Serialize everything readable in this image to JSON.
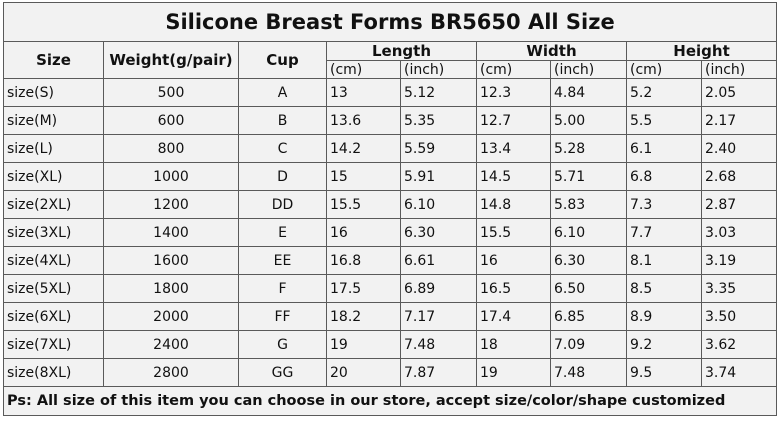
{
  "title": "Silicone Breast Forms BR5650 All Size",
  "header": {
    "size": "Size",
    "weight": "Weight(g/pair)",
    "cup": "Cup",
    "groups": [
      "Length",
      "Width",
      "Height"
    ],
    "units": [
      "(cm)",
      "(inch)",
      "(cm)",
      "(inch)",
      "(cm)",
      "(inch)"
    ]
  },
  "rows": [
    [
      "size(S)",
      "500",
      "A",
      "13",
      "5.12",
      "12.3",
      "4.84",
      "5.2",
      "2.05"
    ],
    [
      "size(M)",
      "600",
      "B",
      "13.6",
      "5.35",
      "12.7",
      "5.00",
      "5.5",
      "2.17"
    ],
    [
      "size(L)",
      "800",
      "C",
      "14.2",
      "5.59",
      "13.4",
      "5.28",
      "6.1",
      "2.40"
    ],
    [
      "size(XL)",
      "1000",
      "D",
      "15",
      "5.91",
      "14.5",
      "5.71",
      "6.8",
      "2.68"
    ],
    [
      "size(2XL)",
      "1200",
      "DD",
      "15.5",
      "6.10",
      "14.8",
      "5.83",
      "7.3",
      "2.87"
    ],
    [
      "size(3XL)",
      "1400",
      "E",
      "16",
      "6.30",
      "15.5",
      "6.10",
      "7.7",
      "3.03"
    ],
    [
      "size(4XL)",
      "1600",
      "EE",
      "16.8",
      "6.61",
      "16",
      "6.30",
      "8.1",
      "3.19"
    ],
    [
      "size(5XL)",
      "1800",
      "F",
      "17.5",
      "6.89",
      "16.5",
      "6.50",
      "8.5",
      "3.35"
    ],
    [
      "size(6XL)",
      "2000",
      "FF",
      "18.2",
      "7.17",
      "17.4",
      "6.85",
      "8.9",
      "3.50"
    ],
    [
      "size(7XL)",
      "2400",
      "G",
      "19",
      "7.48",
      "18",
      "7.09",
      "9.2",
      "3.62"
    ],
    [
      "size(8XL)",
      "2800",
      "GG",
      "20",
      "7.87",
      "19",
      "7.48",
      "9.5",
      "3.74"
    ]
  ],
  "footer": "Ps: All size of this item you can choose in our store, accept size/color/shape customized"
}
